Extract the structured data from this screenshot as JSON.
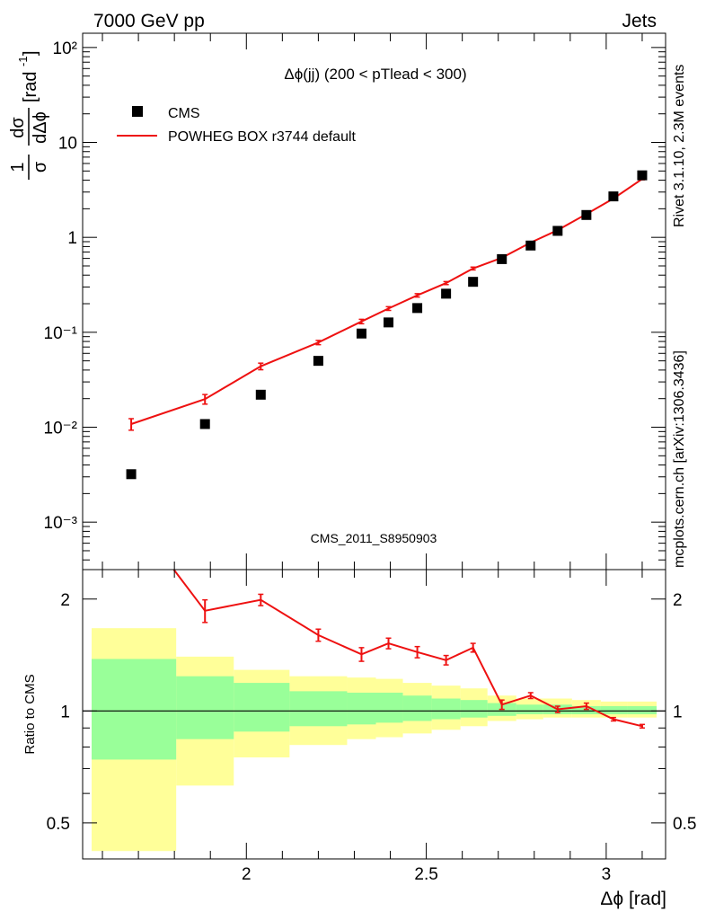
{
  "header": {
    "energy_label": "7000 GeV pp",
    "category_label": "Jets"
  },
  "side_labels": {
    "rivet": "Rivet 3.1.10,  2.3M events",
    "source": "mcplots.cern.ch [arXiv:1306.3436]"
  },
  "chart_data": {
    "type": "scatter",
    "title": "Δϕ(jj) (200 < pTlead <  300)",
    "watermark": "CMS_2011_S8950903",
    "xlabel": "Δϕ [rad]",
    "ylabel_main": "1/σ dσ/dΔϕ [rad⁻¹]",
    "ylabel_ratio": "Ratio to CMS",
    "xlim": [
      1.545,
      3.165
    ],
    "ylim_log_exponent": [
      -3.5,
      2.15
    ],
    "ratio_ylim": [
      0.4,
      2.4
    ],
    "x_ticks": [
      "2",
      "2.5",
      "3"
    ],
    "x_tick_values": [
      2,
      2.5,
      3
    ],
    "y_ticks": [
      "10⁻³",
      "10⁻²",
      "10⁻¹",
      "1",
      "10",
      "10²"
    ],
    "y_tick_values": [
      0.001,
      0.01,
      0.1,
      1,
      10,
      100
    ],
    "ratio_ticks": [
      "0.5",
      "1",
      "2"
    ],
    "ratio_tick_values": [
      0.5,
      1,
      2
    ],
    "legend": {
      "position": "top-left",
      "entries": [
        {
          "label": "CMS",
          "marker": "square",
          "color": "#000000"
        },
        {
          "label": "POWHEG BOX r3744 default",
          "marker": "line",
          "color": "#ee1111"
        }
      ]
    },
    "series": [
      {
        "name": "CMS",
        "x": [
          1.68,
          1.885,
          2.04,
          2.2,
          2.32,
          2.395,
          2.475,
          2.555,
          2.63,
          2.71,
          2.79,
          2.865,
          2.945,
          3.02,
          3.1
        ],
        "y": [
          0.0032,
          0.0108,
          0.022,
          0.05,
          0.097,
          0.127,
          0.18,
          0.255,
          0.34,
          0.59,
          0.82,
          1.17,
          1.72,
          2.7,
          4.5
        ]
      },
      {
        "name": "POWHEG BOX r3744 default",
        "x": [
          1.68,
          1.885,
          2.04,
          2.2,
          2.32,
          2.395,
          2.475,
          2.555,
          2.63,
          2.71,
          2.79,
          2.865,
          2.945,
          3.02,
          3.1
        ],
        "y": [
          0.0108,
          0.0198,
          0.0438,
          0.078,
          0.13,
          0.178,
          0.245,
          0.33,
          0.47,
          0.61,
          0.88,
          1.19,
          1.76,
          2.56,
          4.12
        ],
        "yerr": [
          0.0015,
          0.0023,
          0.0035,
          0.004,
          0.007,
          0.008,
          0.01,
          0.012,
          0.016,
          0.018,
          0.022,
          0.026,
          0.035,
          0.05,
          0.08
        ]
      }
    ],
    "ratio": {
      "x": [
        1.68,
        1.885,
        2.04,
        2.2,
        2.32,
        2.395,
        2.475,
        2.555,
        2.63,
        2.71,
        2.79,
        2.865,
        2.945,
        3.02,
        3.1
      ],
      "values": [
        3.4,
        1.86,
        1.99,
        1.6,
        1.42,
        1.52,
        1.44,
        1.37,
        1.48,
        1.04,
        1.1,
        1.01,
        1.03,
        0.95,
        0.91
      ],
      "errors": [
        0.0,
        0.13,
        0.07,
        0.06,
        0.06,
        0.05,
        0.05,
        0.04,
        0.04,
        0.03,
        0.02,
        0.02,
        0.02,
        0.01,
        0.01
      ],
      "bands": [
        {
          "x0": 1.57,
          "x1": 1.805,
          "stat_lo": 0.74,
          "stat_hi": 1.38,
          "tot_lo": 0.42,
          "tot_hi": 1.67
        },
        {
          "x0": 1.805,
          "x1": 1.965,
          "stat_lo": 0.84,
          "stat_hi": 1.24,
          "tot_lo": 0.63,
          "tot_hi": 1.4
        },
        {
          "x0": 1.965,
          "x1": 2.12,
          "stat_lo": 0.88,
          "stat_hi": 1.19,
          "tot_lo": 0.75,
          "tot_hi": 1.29
        },
        {
          "x0": 2.12,
          "x1": 2.28,
          "stat_lo": 0.91,
          "stat_hi": 1.13,
          "tot_lo": 0.81,
          "tot_hi": 1.24
        },
        {
          "x0": 2.28,
          "x1": 2.36,
          "stat_lo": 0.92,
          "stat_hi": 1.12,
          "tot_lo": 0.84,
          "tot_hi": 1.23
        },
        {
          "x0": 2.36,
          "x1": 2.435,
          "stat_lo": 0.93,
          "stat_hi": 1.12,
          "tot_lo": 0.85,
          "tot_hi": 1.22
        },
        {
          "x0": 2.435,
          "x1": 2.515,
          "stat_lo": 0.94,
          "stat_hi": 1.1,
          "tot_lo": 0.87,
          "tot_hi": 1.19
        },
        {
          "x0": 2.515,
          "x1": 2.595,
          "stat_lo": 0.95,
          "stat_hi": 1.08,
          "tot_lo": 0.89,
          "tot_hi": 1.17
        },
        {
          "x0": 2.595,
          "x1": 2.67,
          "stat_lo": 0.96,
          "stat_hi": 1.07,
          "tot_lo": 0.91,
          "tot_hi": 1.15
        },
        {
          "x0": 2.67,
          "x1": 2.75,
          "stat_lo": 0.97,
          "stat_hi": 1.05,
          "tot_lo": 0.94,
          "tot_hi": 1.1
        },
        {
          "x0": 2.75,
          "x1": 2.825,
          "stat_lo": 0.98,
          "stat_hi": 1.04,
          "tot_lo": 0.95,
          "tot_hi": 1.08
        },
        {
          "x0": 2.825,
          "x1": 2.905,
          "stat_lo": 0.98,
          "stat_hi": 1.04,
          "tot_lo": 0.96,
          "tot_hi": 1.08
        },
        {
          "x0": 2.905,
          "x1": 2.985,
          "stat_lo": 0.98,
          "stat_hi": 1.03,
          "tot_lo": 0.96,
          "tot_hi": 1.07
        },
        {
          "x0": 2.985,
          "x1": 3.06,
          "stat_lo": 0.98,
          "stat_hi": 1.03,
          "tot_lo": 0.96,
          "tot_hi": 1.06
        },
        {
          "x0": 3.06,
          "x1": 3.14,
          "stat_lo": 0.98,
          "stat_hi": 1.03,
          "tot_lo": 0.96,
          "tot_hi": 1.06
        }
      ]
    },
    "colors": {
      "data": "#000000",
      "mc": "#ee1111",
      "stat_band": "#99ff99",
      "total_band": "#ffff99",
      "side_text": "#888888",
      "watermark": "#999999"
    }
  }
}
